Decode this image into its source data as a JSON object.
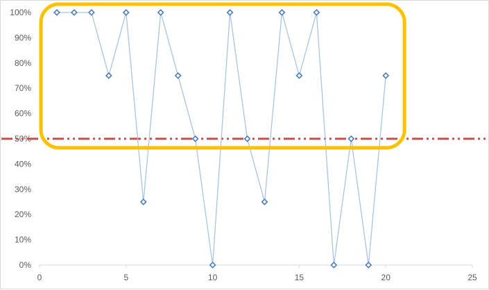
{
  "chart_data": {
    "type": "scatter",
    "title": "",
    "xlabel": "",
    "ylabel": "",
    "xlim": [
      0,
      25
    ],
    "ylim": [
      0,
      1
    ],
    "x_ticks": [
      0,
      5,
      10,
      15,
      20,
      25
    ],
    "x_tick_labels": [
      "0",
      "5",
      "10",
      "15",
      "20",
      "25"
    ],
    "y_ticks": [
      0,
      0.1,
      0.2,
      0.3,
      0.4,
      0.5,
      0.6,
      0.7,
      0.8,
      0.9,
      1.0
    ],
    "y_tick_labels": [
      "0%",
      "10%",
      "20%",
      "30%",
      "40%",
      "50%",
      "60%",
      "70%",
      "80%",
      "90%",
      "100%"
    ],
    "grid": false,
    "series": [
      {
        "x": [
          1,
          2,
          3,
          4,
          5,
          6,
          7,
          8,
          9,
          10,
          11,
          12,
          13,
          14,
          15,
          16,
          17,
          18,
          19,
          20
        ],
        "y": [
          1.0,
          1.0,
          1.0,
          0.75,
          1.0,
          0.25,
          1.0,
          0.75,
          0.5,
          0.0,
          1.0,
          0.5,
          0.25,
          1.0,
          0.75,
          1.0,
          0.0,
          0.5,
          0.0,
          0.75
        ],
        "marker": "diamond-open",
        "line_color": "#a9c3e0",
        "marker_color": "#4a7ebb"
      }
    ],
    "reference_line": {
      "y": 0.5,
      "style": "dash-dot-dot",
      "color": "#c0504d"
    },
    "highlight_box": {
      "color": "#ffc000",
      "x_range": [
        0,
        21
      ],
      "y_range": [
        0.5,
        1.0
      ]
    }
  }
}
